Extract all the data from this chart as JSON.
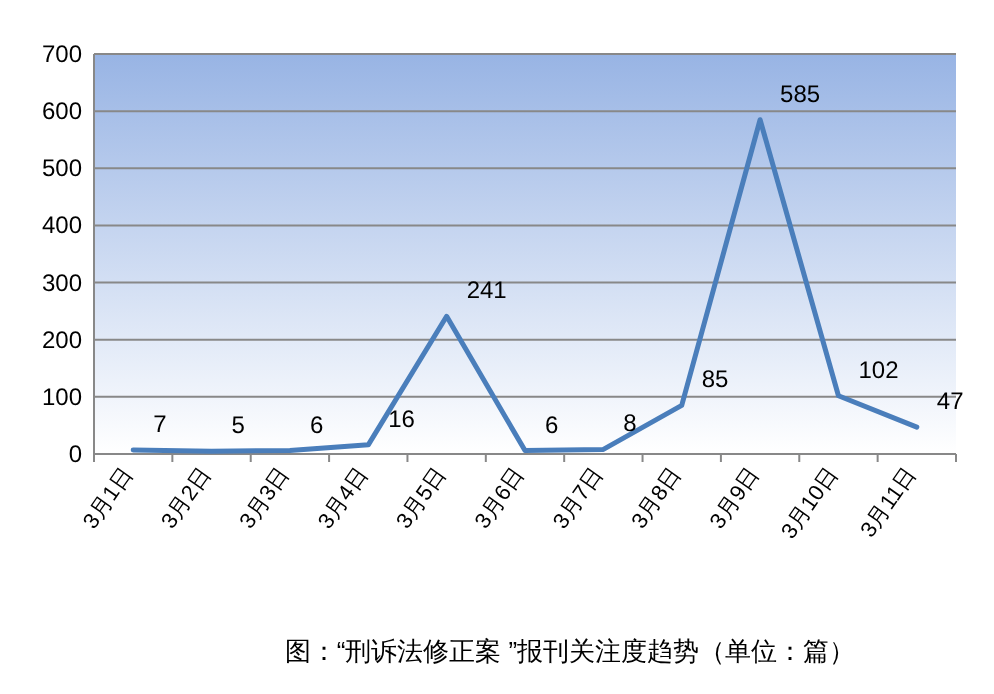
{
  "chart_data": {
    "type": "line",
    "categories": [
      "3月1日",
      "3月2日",
      "3月3日",
      "3月4日",
      "3月5日",
      "3月6日",
      "3月7日",
      "3月8日",
      "3月9日",
      "3月10日",
      "3月11日"
    ],
    "series": [
      {
        "color": "#4a7ebb",
        "values": [
          7,
          5,
          6,
          16,
          241,
          6,
          8,
          85,
          585,
          102,
          47
        ]
      }
    ],
    "ylim": [
      0,
      700
    ],
    "yticks": [
      0,
      100,
      200,
      300,
      400,
      500,
      600,
      700
    ],
    "grid": "y",
    "data_labels": true,
    "marker": "none",
    "line_style": "solid",
    "annotations": [
      "图：“刑诉法修正案 ”报刊关注度趋势（单位：篇）"
    ]
  }
}
